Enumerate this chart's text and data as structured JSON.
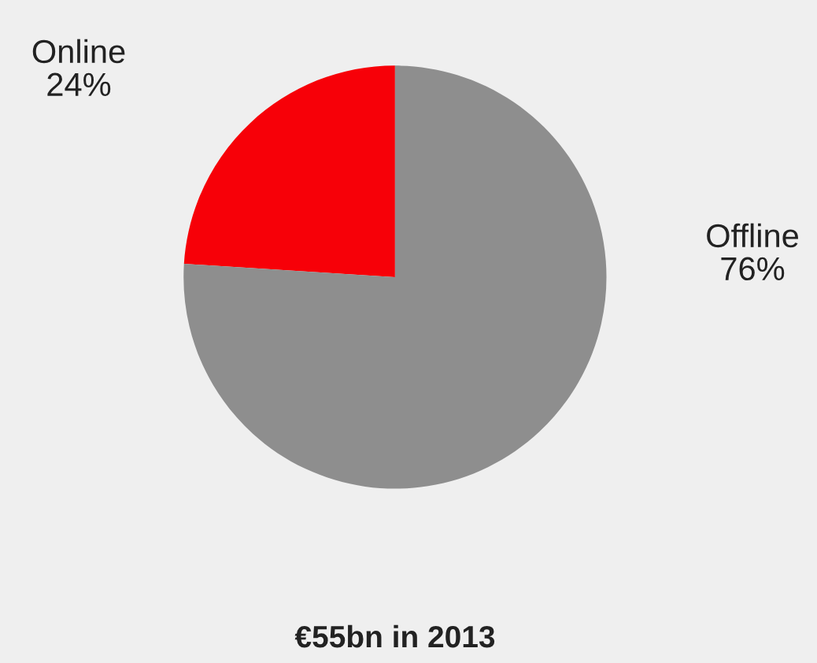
{
  "chart_data": {
    "type": "pie",
    "title": "€55bn in 2013",
    "categories": [
      "Online",
      "Offline"
    ],
    "values": [
      24,
      76
    ],
    "value_labels": [
      "24%",
      "76%"
    ],
    "colors": [
      "#f70008",
      "#8e8e8e"
    ],
    "legend": false
  }
}
